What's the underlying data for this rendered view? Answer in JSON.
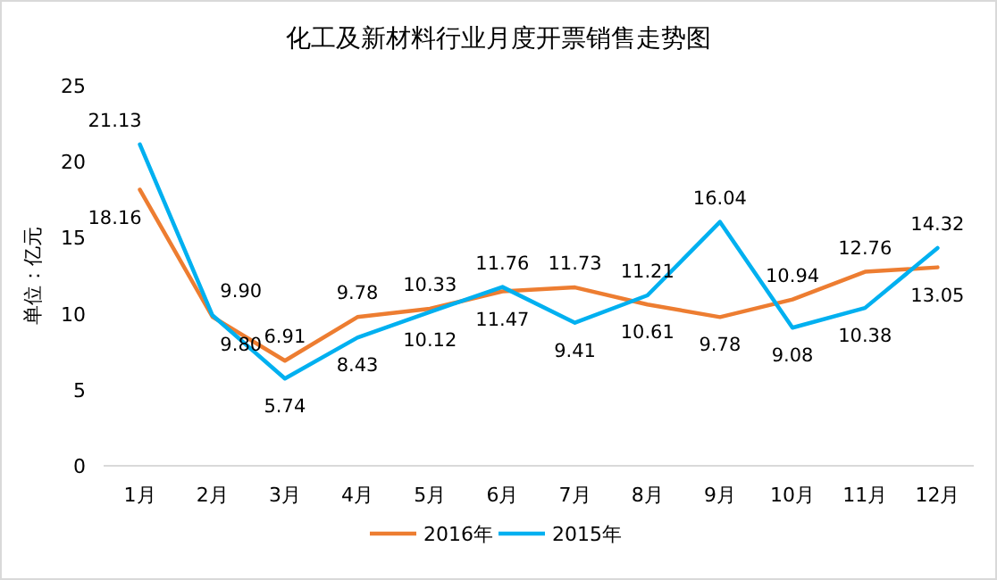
{
  "chart_data": {
    "type": "line",
    "title": "化工及新材料行业月度开票销售走势图",
    "ylabel": "单位：亿元",
    "categories": [
      "1月",
      "2月",
      "3月",
      "4月",
      "5月",
      "6月",
      "7月",
      "8月",
      "9月",
      "10月",
      "11月",
      "12月"
    ],
    "series": [
      {
        "name": "2016年",
        "color": "#ed7d31",
        "values": [
          18.16,
          9.8,
          6.91,
          9.78,
          10.33,
          11.47,
          11.73,
          10.61,
          9.78,
          10.94,
          12.76,
          13.05
        ],
        "value_labels": [
          "18.16",
          "9.80",
          "6.91",
          "9.78",
          "10.33",
          "11.47",
          "11.73",
          "10.61",
          "9.78",
          "10.94",
          "12.76",
          "13.05"
        ]
      },
      {
        "name": "2015年",
        "color": "#00b0f0",
        "values": [
          21.13,
          9.9,
          5.74,
          8.43,
          10.12,
          11.76,
          9.41,
          11.21,
          16.04,
          9.08,
          10.38,
          14.32
        ],
        "value_labels": [
          "21.13",
          "9.90",
          "5.74",
          "8.43",
          "10.12",
          "11.76",
          "9.41",
          "11.21",
          "16.04",
          "9.08",
          "10.38",
          "14.32"
        ]
      }
    ],
    "ylim": [
      0,
      25
    ],
    "yticks": [
      0,
      5,
      10,
      15,
      20,
      25
    ],
    "grid": false,
    "legend": "bottom",
    "marker": "none",
    "line_style": "solid"
  }
}
